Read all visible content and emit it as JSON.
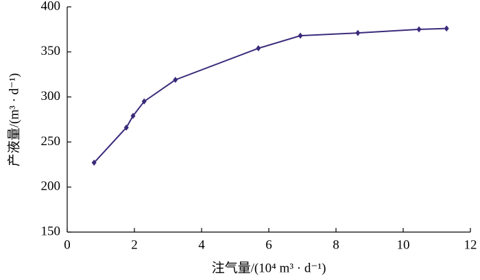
{
  "chart_data": {
    "type": "line",
    "x_label": "注气量/(10⁴ m³ · d⁻¹)",
    "y_label": "产液量/(m³ · d⁻¹)",
    "x": [
      0.8,
      1.76,
      1.96,
      2.29,
      3.22,
      5.69,
      6.94,
      8.65,
      10.47,
      11.29
    ],
    "series": [
      {
        "color": "#3b2a7a",
        "values": [
          227,
          266,
          279,
          295,
          319,
          354,
          368,
          371,
          375,
          376
        ]
      }
    ],
    "xlim": [
      0,
      12
    ],
    "xticks": [
      0,
      2,
      4,
      6,
      8,
      10,
      12
    ],
    "ylim": [
      150,
      400
    ],
    "yticks": [
      150,
      200,
      250,
      300,
      350,
      400
    ]
  }
}
